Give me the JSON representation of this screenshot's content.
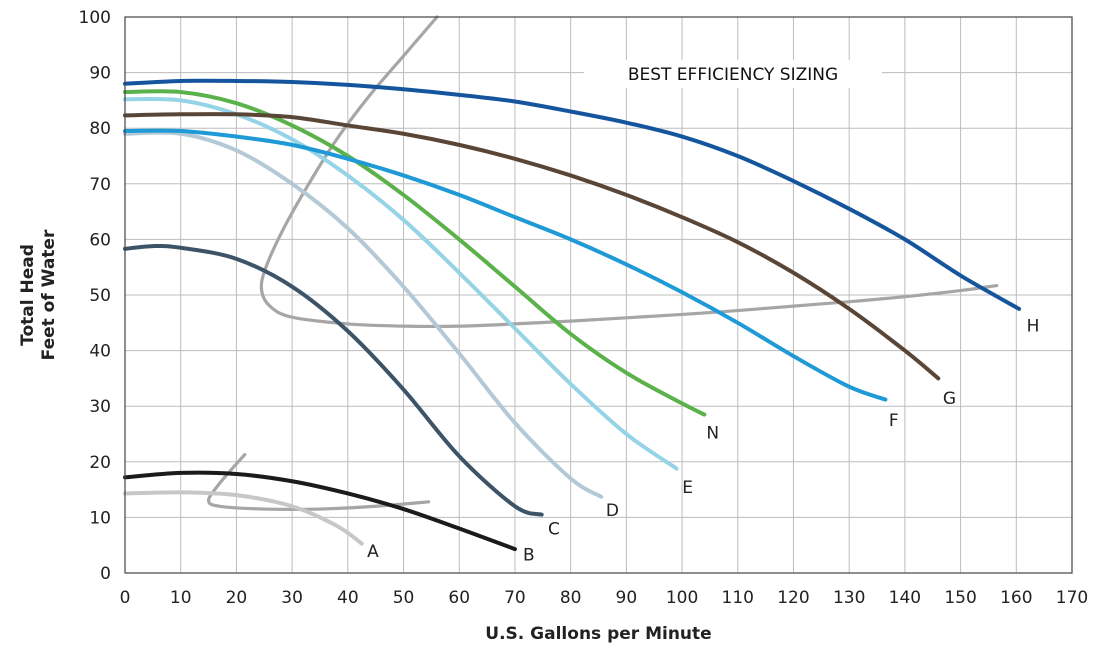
{
  "chart_data": {
    "type": "line",
    "xlabel": "U.S. Gallons per Minute",
    "ylabel_lines": [
      "Total Head",
      "Feet of Water"
    ],
    "xlim": [
      0,
      170
    ],
    "ylim": [
      0,
      100
    ],
    "x_ticks": [
      0,
      10,
      20,
      30,
      40,
      50,
      60,
      70,
      80,
      90,
      100,
      110,
      120,
      130,
      140,
      150,
      160,
      170
    ],
    "y_ticks": [
      0,
      10,
      20,
      30,
      40,
      50,
      60,
      70,
      80,
      90,
      100
    ],
    "grid": true,
    "annotation": "BEST EFFICIENCY SIZING",
    "series": [
      {
        "name": "A",
        "color": "#c7c7c7",
        "points": [
          [
            0,
            14.3
          ],
          [
            10,
            14.5
          ],
          [
            20,
            14
          ],
          [
            30,
            12
          ],
          [
            38,
            8.5
          ],
          [
            42.5,
            5.3
          ]
        ]
      },
      {
        "name": "B",
        "color": "#1b1b1b",
        "points": [
          [
            0,
            17.2
          ],
          [
            10,
            18
          ],
          [
            20,
            17.8
          ],
          [
            30,
            16.5
          ],
          [
            40,
            14.3
          ],
          [
            50,
            11.5
          ],
          [
            60,
            8
          ],
          [
            70,
            4.3
          ]
        ]
      },
      {
        "name": "C",
        "color": "#3d5468",
        "points": [
          [
            0,
            58.3
          ],
          [
            5,
            58.8
          ],
          [
            10,
            58.5
          ],
          [
            20,
            56.5
          ],
          [
            30,
            51.5
          ],
          [
            40,
            43.5
          ],
          [
            50,
            33
          ],
          [
            60,
            21
          ],
          [
            70,
            12
          ],
          [
            74.8,
            10.5
          ]
        ]
      },
      {
        "name": "D",
        "color": "#b4c9d6",
        "points": [
          [
            0,
            79
          ],
          [
            10,
            79
          ],
          [
            20,
            76
          ],
          [
            30,
            70
          ],
          [
            40,
            62
          ],
          [
            50,
            51.5
          ],
          [
            60,
            39.5
          ],
          [
            70,
            27
          ],
          [
            80,
            17
          ],
          [
            85.5,
            13.7
          ]
        ]
      },
      {
        "name": "E",
        "color": "#95d3e6",
        "points": [
          [
            0,
            85.2
          ],
          [
            10,
            85
          ],
          [
            20,
            82.5
          ],
          [
            30,
            78
          ],
          [
            40,
            71.5
          ],
          [
            50,
            63.5
          ],
          [
            60,
            54
          ],
          [
            70,
            44
          ],
          [
            80,
            34
          ],
          [
            90,
            25
          ],
          [
            99,
            18.8
          ]
        ]
      },
      {
        "name": "N",
        "color": "#5bb14a",
        "points": [
          [
            0,
            86.5
          ],
          [
            10,
            86.5
          ],
          [
            20,
            84.5
          ],
          [
            30,
            80.5
          ],
          [
            40,
            75
          ],
          [
            50,
            68
          ],
          [
            60,
            60
          ],
          [
            70,
            51.5
          ],
          [
            80,
            43
          ],
          [
            90,
            36
          ],
          [
            100,
            30.5
          ],
          [
            104,
            28.5
          ]
        ]
      },
      {
        "name": "F",
        "color": "#1f9ad6",
        "points": [
          [
            0,
            79.5
          ],
          [
            10,
            79.5
          ],
          [
            20,
            78.5
          ],
          [
            30,
            77
          ],
          [
            40,
            74.5
          ],
          [
            50,
            71.5
          ],
          [
            60,
            68
          ],
          [
            70,
            64
          ],
          [
            80,
            60
          ],
          [
            90,
            55.5
          ],
          [
            100,
            50.5
          ],
          [
            110,
            45
          ],
          [
            120,
            39
          ],
          [
            130,
            33.5
          ],
          [
            136.5,
            31.2
          ]
        ]
      },
      {
        "name": "G",
        "color": "#5a4637",
        "points": [
          [
            0,
            82.3
          ],
          [
            10,
            82.5
          ],
          [
            20,
            82.5
          ],
          [
            30,
            82
          ],
          [
            40,
            80.5
          ],
          [
            50,
            79
          ],
          [
            60,
            77
          ],
          [
            70,
            74.5
          ],
          [
            80,
            71.5
          ],
          [
            90,
            68
          ],
          [
            100,
            64
          ],
          [
            110,
            59.5
          ],
          [
            120,
            54
          ],
          [
            130,
            47.5
          ],
          [
            140,
            40
          ],
          [
            146,
            35
          ]
        ]
      },
      {
        "name": "H",
        "color": "#15559e",
        "points": [
          [
            0,
            88
          ],
          [
            10,
            88.5
          ],
          [
            20,
            88.5
          ],
          [
            30,
            88.3
          ],
          [
            40,
            87.8
          ],
          [
            50,
            87
          ],
          [
            60,
            86
          ],
          [
            70,
            84.8
          ],
          [
            80,
            83
          ],
          [
            90,
            81
          ],
          [
            100,
            78.5
          ],
          [
            110,
            75
          ],
          [
            120,
            70.5
          ],
          [
            130,
            65.5
          ],
          [
            140,
            60
          ],
          [
            150,
            53.5
          ],
          [
            160.5,
            47.5
          ]
        ]
      }
    ],
    "efficiency_boundaries": [
      {
        "color": "#a6a6a6",
        "points": [
          [
            56,
            100
          ],
          [
            50,
            93
          ],
          [
            44,
            86
          ],
          [
            38,
            78
          ],
          [
            33,
            70
          ],
          [
            28.5,
            62
          ],
          [
            25.3,
            55
          ],
          [
            24.5,
            51
          ],
          [
            26,
            48
          ],
          [
            30,
            46
          ],
          [
            40,
            44.8
          ],
          [
            50,
            44.4
          ],
          [
            60,
            44.4
          ],
          [
            70,
            44.8
          ],
          [
            80,
            45.3
          ],
          [
            90,
            45.9
          ],
          [
            100,
            46.5
          ],
          [
            110,
            47.2
          ],
          [
            120,
            48
          ],
          [
            130,
            48.8
          ],
          [
            140,
            49.7
          ],
          [
            150,
            50.8
          ],
          [
            156.5,
            51.7
          ]
        ]
      },
      {
        "color": "#a6a6a6",
        "points": [
          [
            21.5,
            21.3
          ],
          [
            19,
            18.5
          ],
          [
            16.5,
            15.5
          ],
          [
            15,
            13
          ],
          [
            17,
            12
          ],
          [
            25,
            11.5
          ],
          [
            35,
            11.5
          ],
          [
            45,
            12
          ],
          [
            54.5,
            12.8
          ]
        ]
      }
    ],
    "curve_labels": [
      {
        "name": "A",
        "text": "A",
        "x": 44.5,
        "y": 4
      },
      {
        "name": "B",
        "text": "B",
        "x": 72.5,
        "y": 3.3
      },
      {
        "name": "C",
        "text": "C",
        "x": 77,
        "y": 8
      },
      {
        "name": "D",
        "text": "D",
        "x": 87.5,
        "y": 11.3
      },
      {
        "name": "E",
        "text": "E",
        "x": 101,
        "y": 15.5
      },
      {
        "name": "N",
        "text": "N",
        "x": 105.5,
        "y": 25.3
      },
      {
        "name": "F",
        "text": "F",
        "x": 138,
        "y": 27.5
      },
      {
        "name": "G",
        "text": "G",
        "x": 148,
        "y": 31.5
      },
      {
        "name": "H",
        "text": "H",
        "x": 163,
        "y": 44.5
      }
    ]
  }
}
